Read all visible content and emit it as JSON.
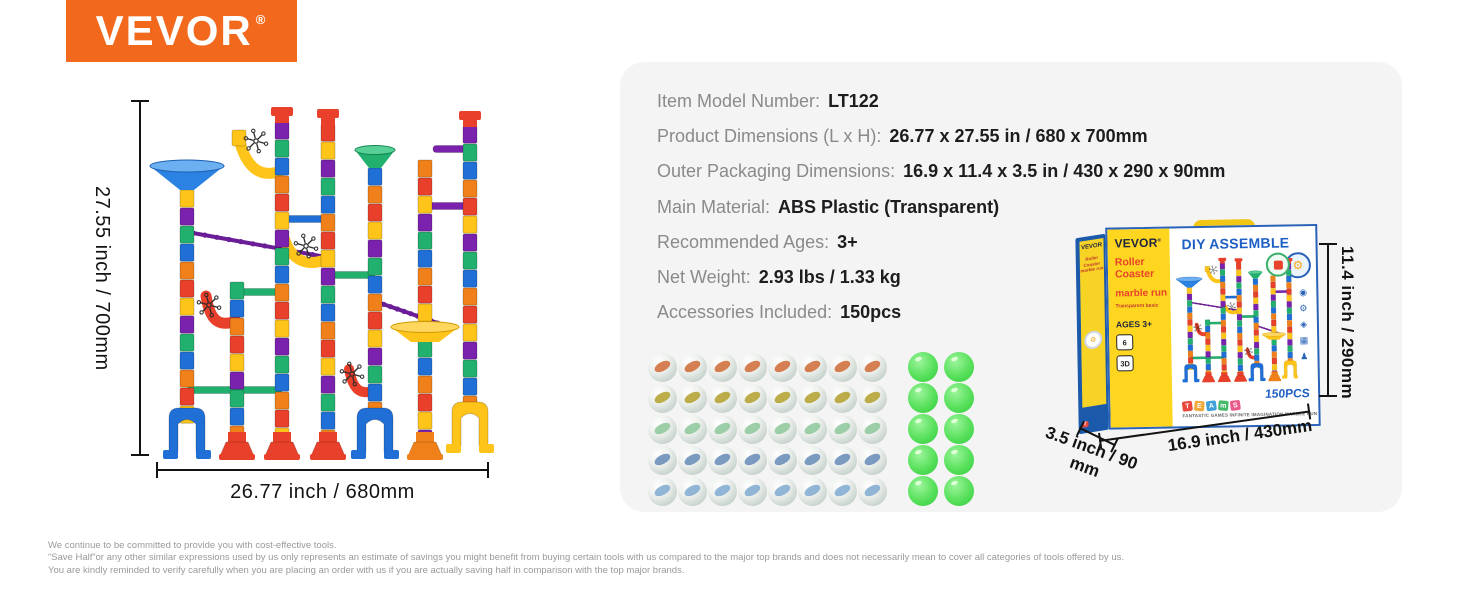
{
  "logo": {
    "text": "VEVOR",
    "reg": "®",
    "bg_color": "#f2691d"
  },
  "diagram": {
    "height_label": "27.55 inch / 700mm",
    "width_label": "26.77 inch /  680mm"
  },
  "specs": {
    "rows": [
      {
        "label": "Item Model Number:",
        "value": "LT122"
      },
      {
        "label": "Product Dimensions (L x H):",
        "value": "26.77 x 27.55 in / 680 x 700mm"
      },
      {
        "label": "Outer Packaging Dimensions:",
        "value": "16.9 x 11.4 x 3.5 in / 430 x 290 x 90mm"
      },
      {
        "label": "Main Material:",
        "value": "ABS Plastic (Transparent)"
      },
      {
        "label": "Recommended Ages:",
        "value": "3+"
      },
      {
        "label": "Net Weight:",
        "value": "2.93 lbs / 1.33 kg"
      },
      {
        "label": "Accessories Included:",
        "value": "150pcs"
      }
    ]
  },
  "marbles": {
    "glass_per_row": 8,
    "glow_per_row": 2,
    "glass_swirls": [
      "#cf6a36",
      "#b1a02c",
      "#8cc79a",
      "#6589b6",
      "#7fa9d0"
    ],
    "glow_color": "#58e05b"
  },
  "box": {
    "side_brand": "VEVOR",
    "side_sub": "Roller Coaster marble run",
    "brand": "VEVOR",
    "reg": "®",
    "subtitle1": "Roller",
    "subtitle2": "Coaster",
    "subtitle3": "marble run",
    "chip": "Transparent basic",
    "ages": "AGES 3+",
    "badge_6": "6",
    "badge_3d": "3D",
    "title": "DIY ASSEMBLE",
    "count": "150PCS",
    "wheel_glyph": "⚙",
    "icon_glyphs": [
      "◉",
      "⚙",
      "◈",
      "▦",
      "♟"
    ],
    "teams": [
      "T",
      "E",
      "A",
      "m",
      "S"
    ],
    "teams_colors": [
      "#e8483b",
      "#f2a93b",
      "#3f9fd8",
      "#46b96a",
      "#e85a8a"
    ],
    "tagline": "FANTASTIC GAMES INFINITE IMAGINATION MARBLE RUN"
  },
  "box_dims": {
    "height": "11.4 inch / 290mm",
    "width": "16.9 inch / 430mm",
    "depth": "3.5 inch / 90 mm"
  },
  "footer": {
    "lines": [
      "We continue to be committed to provide you with cost-effective tools.",
      "“Save Half”or any other similar expressions used by us only represents an estimate of savings you might benefit from buying certain tools with us compared to the major top brands and does not necessarily mean to cover all categories of tools offered by us.",
      "You are kindly reminded to verify carefully when you are placing an order with us if you are actually saving half in comparison with the top major brands."
    ]
  }
}
